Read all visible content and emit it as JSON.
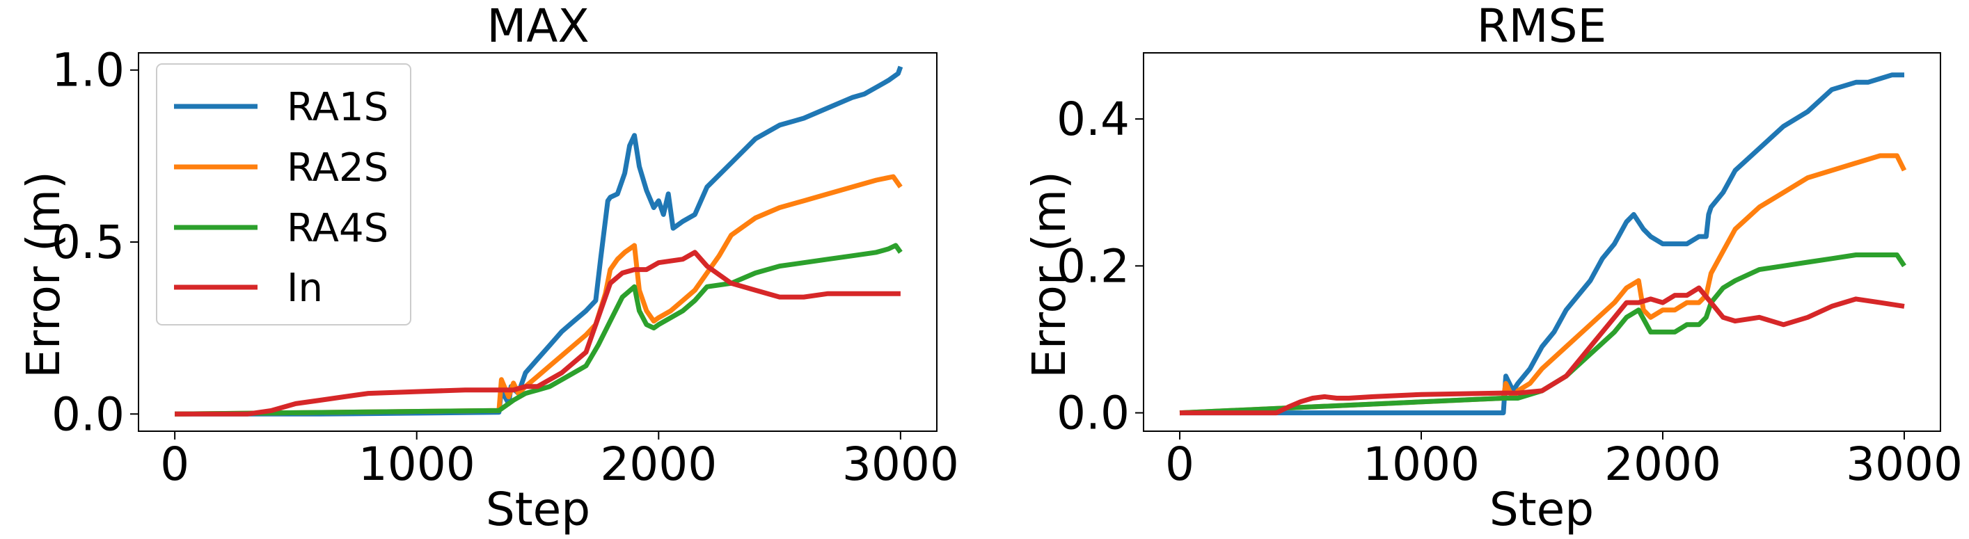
{
  "chart_data": [
    {
      "type": "line",
      "title": "MAX",
      "xlabel": "Step",
      "ylabel": "Error (m)",
      "xlim": [
        -150,
        3150
      ],
      "ylim": [
        -0.05,
        1.05
      ],
      "xticks": [
        0,
        1000,
        2000,
        3000
      ],
      "xtick_labels": [
        "0",
        "1000",
        "2000",
        "3000"
      ],
      "yticks": [
        0.0,
        0.5,
        1.0
      ],
      "ytick_labels": [
        "0.0",
        "0.5",
        "1.0"
      ],
      "grid": false,
      "legend": "top-left",
      "series": [
        {
          "name": "RA1S",
          "color": "#1f77b4",
          "x": [
            0,
            600,
            1340,
            1350,
            1380,
            1390,
            1420,
            1450,
            1500,
            1550,
            1600,
            1650,
            1700,
            1740,
            1760,
            1790,
            1800,
            1830,
            1860,
            1880,
            1900,
            1920,
            1950,
            1980,
            2000,
            2020,
            2040,
            2060,
            2080,
            2100,
            2150,
            2200,
            2300,
            2400,
            2500,
            2600,
            2700,
            2800,
            2850,
            2900,
            2950,
            2990,
            3000
          ],
          "y": [
            0.0,
            0.0,
            0.005,
            0.07,
            0.03,
            0.08,
            0.06,
            0.12,
            0.16,
            0.2,
            0.24,
            0.27,
            0.3,
            0.33,
            0.45,
            0.62,
            0.63,
            0.64,
            0.7,
            0.78,
            0.81,
            0.72,
            0.65,
            0.6,
            0.62,
            0.58,
            0.64,
            0.54,
            0.55,
            0.56,
            0.58,
            0.66,
            0.73,
            0.8,
            0.84,
            0.86,
            0.89,
            0.92,
            0.93,
            0.95,
            0.97,
            0.99,
            1.01
          ]
        },
        {
          "name": "RA2S",
          "color": "#ff7f0e",
          "x": [
            0,
            1340,
            1350,
            1380,
            1400,
            1420,
            1450,
            1500,
            1550,
            1600,
            1650,
            1700,
            1740,
            1780,
            1800,
            1830,
            1860,
            1880,
            1900,
            1920,
            1950,
            1980,
            2000,
            2050,
            2100,
            2150,
            2200,
            2250,
            2300,
            2400,
            2500,
            2600,
            2700,
            2800,
            2900,
            2970,
            3000
          ],
          "y": [
            0.0,
            0.01,
            0.1,
            0.05,
            0.09,
            0.06,
            0.08,
            0.11,
            0.14,
            0.17,
            0.2,
            0.23,
            0.26,
            0.35,
            0.42,
            0.45,
            0.47,
            0.48,
            0.49,
            0.36,
            0.3,
            0.27,
            0.28,
            0.3,
            0.33,
            0.36,
            0.41,
            0.46,
            0.52,
            0.57,
            0.6,
            0.62,
            0.64,
            0.66,
            0.68,
            0.69,
            0.66
          ]
        },
        {
          "name": "RA4S",
          "color": "#2ca02c",
          "x": [
            0,
            1340,
            1400,
            1450,
            1500,
            1550,
            1600,
            1650,
            1700,
            1750,
            1800,
            1850,
            1900,
            1920,
            1950,
            1980,
            2000,
            2050,
            2100,
            2150,
            2200,
            2300,
            2400,
            2500,
            2600,
            2700,
            2800,
            2900,
            2950,
            2980,
            3000
          ],
          "y": [
            0.0,
            0.01,
            0.04,
            0.06,
            0.07,
            0.08,
            0.1,
            0.12,
            0.14,
            0.2,
            0.27,
            0.34,
            0.37,
            0.3,
            0.26,
            0.25,
            0.26,
            0.28,
            0.3,
            0.33,
            0.37,
            0.38,
            0.41,
            0.43,
            0.44,
            0.45,
            0.46,
            0.47,
            0.48,
            0.49,
            0.47
          ]
        },
        {
          "name": "In",
          "color": "#d62728",
          "x": [
            0,
            300,
            400,
            500,
            600,
            700,
            800,
            1000,
            1200,
            1340,
            1400,
            1450,
            1500,
            1550,
            1600,
            1650,
            1700,
            1750,
            1800,
            1850,
            1900,
            1950,
            2000,
            2100,
            2150,
            2200,
            2300,
            2400,
            2500,
            2600,
            2700,
            2800,
            2900,
            3000
          ],
          "y": [
            0.0,
            0.0,
            0.01,
            0.03,
            0.04,
            0.05,
            0.06,
            0.065,
            0.07,
            0.07,
            0.07,
            0.08,
            0.08,
            0.1,
            0.12,
            0.15,
            0.18,
            0.28,
            0.38,
            0.41,
            0.42,
            0.42,
            0.44,
            0.45,
            0.47,
            0.43,
            0.38,
            0.36,
            0.34,
            0.34,
            0.35,
            0.35,
            0.35,
            0.35
          ]
        }
      ]
    },
    {
      "type": "line",
      "title": "RMSE",
      "xlabel": "Step",
      "ylabel": "Error (m)",
      "xlim": [
        -150,
        3150
      ],
      "ylim": [
        -0.025,
        0.49
      ],
      "xticks": [
        0,
        1000,
        2000,
        3000
      ],
      "xtick_labels": [
        "0",
        "1000",
        "2000",
        "3000"
      ],
      "yticks": [
        0.0,
        0.2,
        0.4
      ],
      "ytick_labels": [
        "0.0",
        "0.2",
        "0.4"
      ],
      "grid": false,
      "legend": "none",
      "series": [
        {
          "name": "RA1S",
          "color": "#1f77b4",
          "x": [
            0,
            600,
            1340,
            1350,
            1380,
            1400,
            1450,
            1500,
            1550,
            1600,
            1650,
            1700,
            1750,
            1800,
            1850,
            1880,
            1900,
            1920,
            1950,
            2000,
            2050,
            2100,
            2150,
            2180,
            2190,
            2200,
            2250,
            2300,
            2400,
            2500,
            2600,
            2700,
            2800,
            2850,
            2900,
            2950,
            3000
          ],
          "y": [
            0.0,
            0.0,
            0.0,
            0.05,
            0.03,
            0.04,
            0.06,
            0.09,
            0.11,
            0.14,
            0.16,
            0.18,
            0.21,
            0.23,
            0.26,
            0.27,
            0.26,
            0.25,
            0.24,
            0.23,
            0.23,
            0.23,
            0.24,
            0.24,
            0.27,
            0.28,
            0.3,
            0.33,
            0.36,
            0.39,
            0.41,
            0.44,
            0.45,
            0.45,
            0.455,
            0.46,
            0.46
          ]
        },
        {
          "name": "RA2S",
          "color": "#ff7f0e",
          "x": [
            0,
            1340,
            1350,
            1380,
            1400,
            1450,
            1500,
            1600,
            1700,
            1800,
            1850,
            1900,
            1920,
            1950,
            2000,
            2050,
            2100,
            2150,
            2180,
            2200,
            2250,
            2300,
            2400,
            2500,
            2600,
            2700,
            2800,
            2900,
            2970,
            3000
          ],
          "y": [
            0.0,
            0.02,
            0.04,
            0.02,
            0.03,
            0.04,
            0.06,
            0.09,
            0.12,
            0.15,
            0.17,
            0.18,
            0.14,
            0.13,
            0.14,
            0.14,
            0.15,
            0.15,
            0.16,
            0.19,
            0.22,
            0.25,
            0.28,
            0.3,
            0.32,
            0.33,
            0.34,
            0.35,
            0.35,
            0.33
          ]
        },
        {
          "name": "RA4S",
          "color": "#2ca02c",
          "x": [
            0,
            1340,
            1400,
            1500,
            1600,
            1700,
            1800,
            1850,
            1900,
            1950,
            2000,
            2050,
            2100,
            2150,
            2180,
            2200,
            2250,
            2300,
            2400,
            2500,
            2600,
            2700,
            2800,
            2900,
            2970,
            3000
          ],
          "y": [
            0.0,
            0.02,
            0.02,
            0.03,
            0.05,
            0.08,
            0.11,
            0.13,
            0.14,
            0.11,
            0.11,
            0.11,
            0.12,
            0.12,
            0.13,
            0.15,
            0.17,
            0.18,
            0.195,
            0.2,
            0.205,
            0.21,
            0.215,
            0.215,
            0.215,
            0.2
          ]
        },
        {
          "name": "In",
          "color": "#d62728",
          "x": [
            0,
            400,
            450,
            500,
            550,
            600,
            650,
            700,
            800,
            1000,
            1340,
            1400,
            1500,
            1600,
            1700,
            1800,
            1850,
            1900,
            1950,
            2000,
            2050,
            2100,
            2150,
            2200,
            2250,
            2300,
            2400,
            2500,
            2600,
            2700,
            2800,
            2900,
            3000
          ],
          "y": [
            0.0,
            0.0,
            0.008,
            0.015,
            0.02,
            0.022,
            0.02,
            0.02,
            0.022,
            0.025,
            0.027,
            0.027,
            0.03,
            0.05,
            0.09,
            0.13,
            0.15,
            0.15,
            0.155,
            0.15,
            0.16,
            0.16,
            0.17,
            0.15,
            0.13,
            0.125,
            0.13,
            0.12,
            0.13,
            0.145,
            0.155,
            0.15,
            0.145
          ]
        }
      ]
    }
  ]
}
